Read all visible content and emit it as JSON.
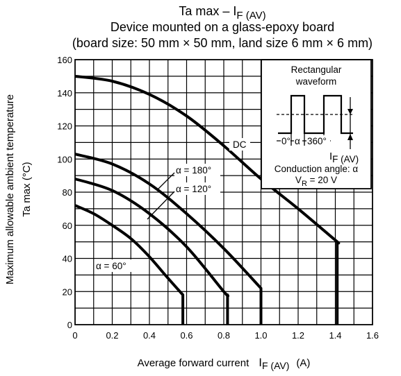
{
  "chart_data": {
    "type": "line",
    "title_lines": [
      "Ta max – I",
      "Device mounted on a glass-epoxy board",
      "(board size: 50 mm × 50 mm, land size 6 mm × 6 mm)"
    ],
    "title_subscript": "F (AV)",
    "ylabel_line1": "Maximum allowable ambient temperature",
    "ylabel_line2": "Ta max    (°C)",
    "xlabel_main": "Average forward current",
    "xlabel_symbol": "I",
    "xlabel_subscript": "F (AV)",
    "xlabel_unit": "(A)",
    "xlim": [
      0,
      1.6
    ],
    "ylim": [
      0,
      160
    ],
    "x_ticks": [
      "0",
      "0.2",
      "0.4",
      "0.6",
      "0.8",
      "1.0",
      "1.2",
      "1.4",
      "1.6"
    ],
    "y_ticks": [
      "0",
      "20",
      "40",
      "60",
      "80",
      "100",
      "120",
      "140",
      "160"
    ],
    "grid": true,
    "series": [
      {
        "name": "DC",
        "x": [
          0,
          0.2,
          0.4,
          0.6,
          0.8,
          1.0,
          1.2,
          1.4,
          1.41
        ],
        "y": [
          150,
          147,
          139,
          126,
          108,
          88,
          70,
          51,
          50
        ],
        "end_y": 0
      },
      {
        "name": "α = 180°",
        "x": [
          0,
          0.2,
          0.4,
          0.6,
          0.8,
          1.0
        ],
        "y": [
          103,
          97,
          85,
          67,
          46,
          22
        ],
        "end_y": 0
      },
      {
        "name": "α = 120°",
        "x": [
          0,
          0.2,
          0.4,
          0.6,
          0.8,
          0.82
        ],
        "y": [
          88,
          81,
          67,
          47,
          20,
          18
        ],
        "end_y": 0
      },
      {
        "name": "α = 60°",
        "x": [
          0,
          0.1,
          0.2,
          0.3,
          0.4,
          0.5,
          0.58
        ],
        "y": [
          72,
          67,
          60,
          52,
          41,
          28,
          18
        ],
        "end_y": 0
      }
    ],
    "inset": {
      "title_line1": "Rectangular",
      "title_line2": "waveform",
      "angle_zero": "0°",
      "angle_alpha": "α",
      "angle_360": "360°",
      "current_symbol": "I",
      "current_subscript": "F (AV)",
      "conduction": "Conduction angle: α",
      "vr_symbol": "V",
      "vr_subscript": "R",
      "vr_value": " = 20 V"
    }
  }
}
